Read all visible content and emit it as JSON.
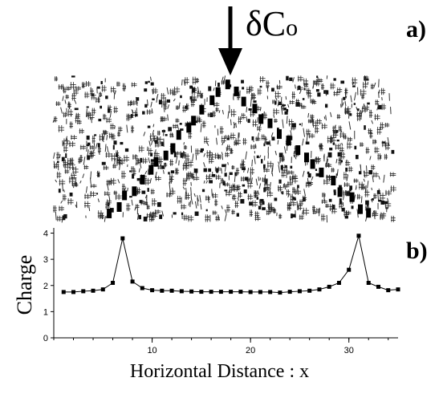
{
  "figure": {
    "panel_a_label": "a)",
    "panel_b_label": "b)",
    "annotation_main": "δC",
    "annotation_sub": "o"
  },
  "chart_data": {
    "type": "line",
    "title": "",
    "xlabel": "Horizontal Distance : x",
    "ylabel": "Charge",
    "xlim": [
      0,
      35
    ],
    "ylim": [
      0,
      4.2
    ],
    "xticks": [
      10,
      20,
      30
    ],
    "yticks": [
      0,
      1,
      2,
      3,
      4
    ],
    "grid": false,
    "series": [
      {
        "marker": "square",
        "color": "#000000",
        "x": [
          1,
          2,
          3,
          4,
          5,
          6,
          7,
          8,
          9,
          10,
          11,
          12,
          13,
          14,
          15,
          16,
          17,
          18,
          19,
          20,
          21,
          22,
          23,
          24,
          25,
          26,
          27,
          28,
          29,
          30,
          31,
          32,
          33,
          34,
          35
        ],
        "values": [
          1.75,
          1.75,
          1.78,
          1.8,
          1.85,
          2.1,
          3.8,
          2.15,
          1.9,
          1.82,
          1.8,
          1.8,
          1.78,
          1.77,
          1.76,
          1.76,
          1.76,
          1.76,
          1.76,
          1.75,
          1.75,
          1.75,
          1.73,
          1.76,
          1.78,
          1.8,
          1.85,
          1.95,
          2.1,
          2.6,
          3.9,
          2.1,
          1.95,
          1.82,
          1.85
        ]
      }
    ]
  }
}
